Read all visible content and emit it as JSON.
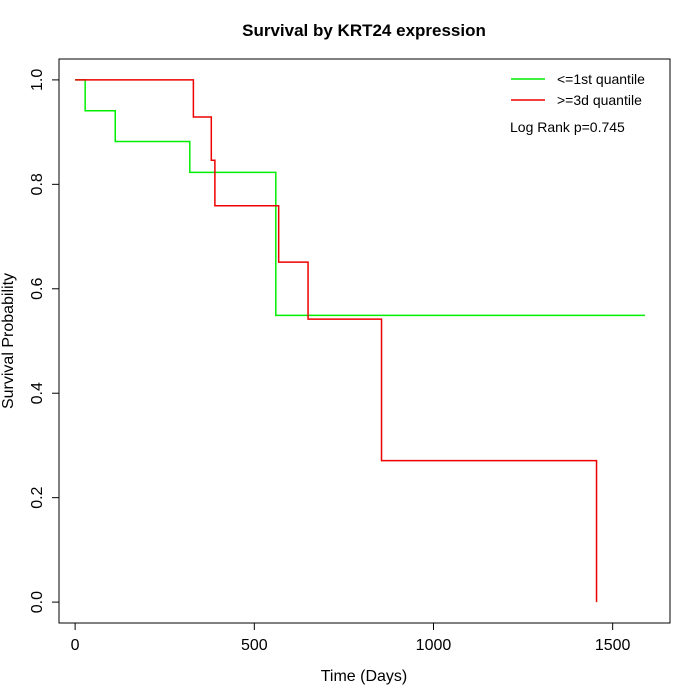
{
  "chart_data": {
    "type": "line",
    "step": true,
    "title": "Survival by KRT24 expression",
    "xlabel": "Time (Days)",
    "ylabel": "Survival Probability",
    "xlim": [
      -45,
      1660
    ],
    "ylim": [
      -0.04,
      1.04
    ],
    "xticks": [
      0,
      500,
      1000,
      1500
    ],
    "yticks": [
      0.0,
      0.2,
      0.4,
      0.6,
      0.8,
      1.0
    ],
    "xtick_labels": [
      "0",
      "500",
      "1000",
      "1500"
    ],
    "ytick_labels": [
      "0.0",
      "0.2",
      "0.4",
      "0.6",
      "0.8",
      "1.0"
    ],
    "grid": false,
    "legend_position": "top-right",
    "annotation": "Log Rank p=0.745",
    "series": [
      {
        "name": "<=1st quantile",
        "color": "#00ee00",
        "x": [
          0,
          28,
          112,
          320,
          560,
          1590
        ],
        "y": [
          1.0,
          0.941,
          0.882,
          0.823,
          0.549,
          0.549
        ]
      },
      {
        "name": ">=3d quantile",
        "color": "#ee0000",
        "x": [
          0,
          330,
          380,
          390,
          568,
          650,
          855,
          1455,
          1455
        ],
        "y": [
          1.0,
          0.929,
          0.846,
          0.759,
          0.651,
          0.542,
          0.271,
          0.271,
          0.0
        ]
      }
    ]
  }
}
